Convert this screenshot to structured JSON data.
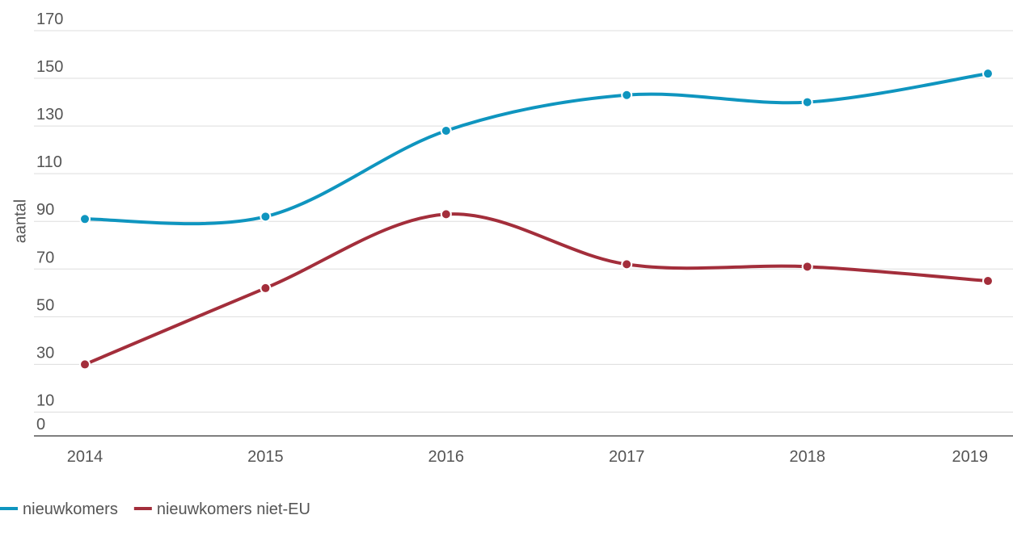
{
  "chart_data": {
    "type": "line",
    "y_label": "aantal",
    "categories": [
      "2014",
      "2015",
      "2016",
      "2017",
      "2018",
      "2019"
    ],
    "series": [
      {
        "name": "nieuwkomers",
        "color": "#0f95bf",
        "values": [
          91,
          92,
          128,
          143,
          140,
          152
        ]
      },
      {
        "name": "nieuwkomers niet-EU",
        "color": "#a32e3b",
        "values": [
          30,
          62,
          93,
          72,
          71,
          65
        ]
      }
    ],
    "ylim": [
      0,
      170
    ],
    "yticks": [
      0,
      10,
      30,
      50,
      70,
      90,
      110,
      130,
      150,
      170
    ],
    "grid": true,
    "legend": "bottom-left"
  }
}
